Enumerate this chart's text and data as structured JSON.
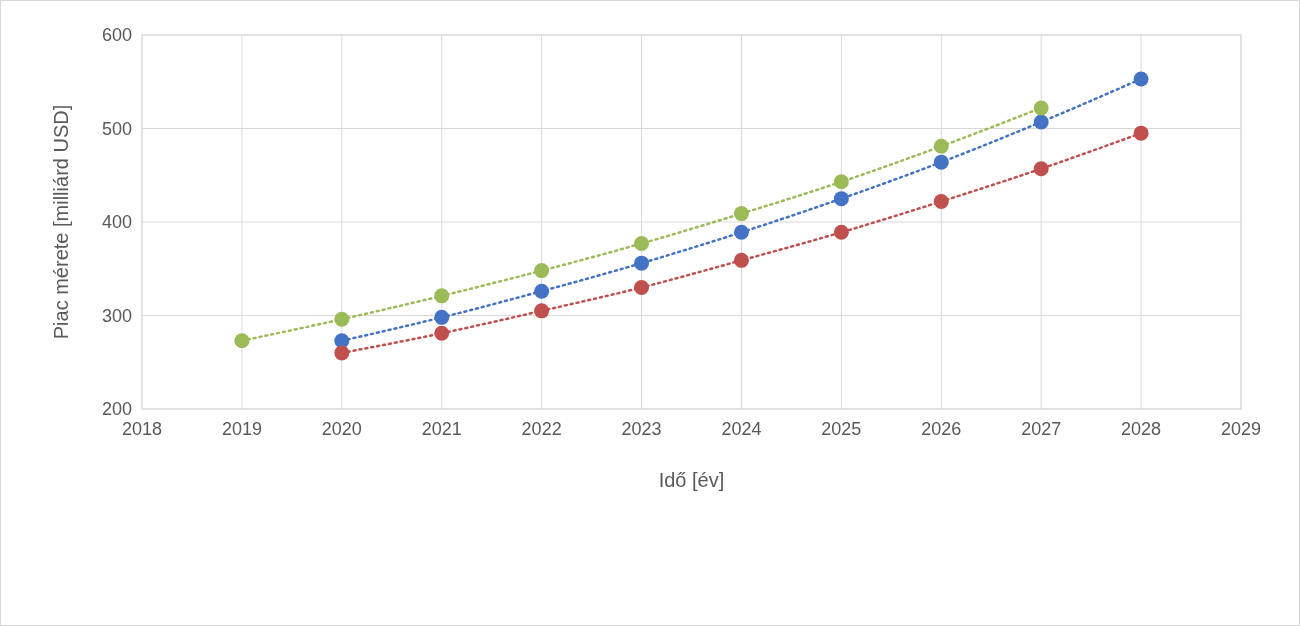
{
  "chart_data": {
    "type": "scatter",
    "xlabel": "Idő [év]",
    "ylabel": "Piac mérete [milliárd USD]",
    "xlim": [
      2018,
      2029
    ],
    "xticks": [
      2018,
      2019,
      2020,
      2021,
      2022,
      2023,
      2024,
      2025,
      2026,
      2027,
      2028,
      2029
    ],
    "ylim": [
      200,
      600
    ],
    "yticks": [
      200,
      300,
      400,
      500,
      600
    ],
    "grid": true,
    "marker": "circle",
    "series": [
      {
        "type": "line",
        "line_style": "dotted",
        "marker": "none",
        "color": "#4472c4",
        "x": [
          2020,
          2021,
          2022,
          2023,
          2024,
          2025,
          2026,
          2027,
          2028
        ],
        "values": [
          273,
          298,
          326,
          356,
          389,
          425,
          464,
          507,
          553
        ]
      },
      {
        "type": "line",
        "line_style": "dotted",
        "marker": "none",
        "color": "#c0504d",
        "x": [
          2020,
          2021,
          2022,
          2023,
          2024,
          2025,
          2026,
          2027,
          2028
        ],
        "values": [
          260,
          281,
          305,
          330,
          359,
          389,
          422,
          457,
          495
        ]
      },
      {
        "type": "line",
        "line_style": "dotted",
        "marker": "none",
        "color": "#9bbb59",
        "x": [
          2019,
          2020,
          2021,
          2022,
          2023,
          2024,
          2025,
          2026,
          2027
        ],
        "values": [
          273,
          296,
          321,
          348,
          377,
          409,
          443,
          481,
          522
        ]
      },
      {
        "color": "#4472c4",
        "x": [
          2020,
          2021,
          2022,
          2023,
          2024,
          2025,
          2026,
          2027,
          2028
        ],
        "values": [
          273,
          298,
          326,
          356,
          389,
          425,
          464,
          507,
          553
        ]
      },
      {
        "color": "#c0504d",
        "x": [
          2020,
          2021,
          2022,
          2023,
          2024,
          2025,
          2026,
          2027,
          2028
        ],
        "values": [
          260,
          281,
          305,
          330,
          359,
          389,
          422,
          457,
          495
        ]
      },
      {
        "color": "#9bbb59",
        "x": [
          2019,
          2020,
          2021,
          2022,
          2023,
          2024,
          2025,
          2026,
          2027
        ],
        "values": [
          273,
          296,
          321,
          348,
          377,
          409,
          443,
          481,
          522
        ]
      }
    ]
  }
}
